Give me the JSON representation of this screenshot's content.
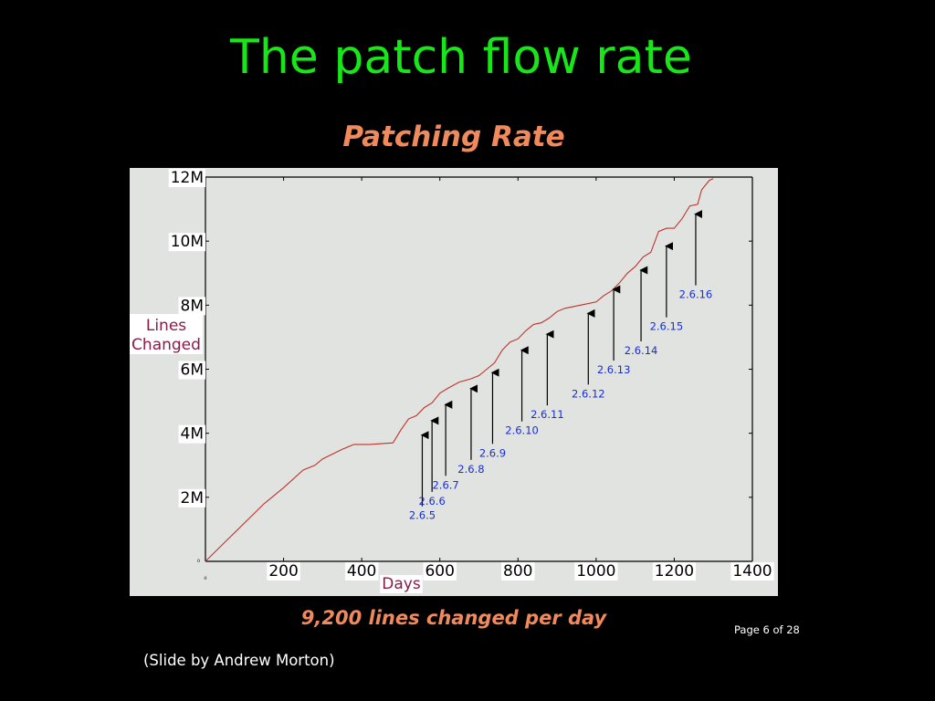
{
  "slide": {
    "title": "The patch flow rate",
    "caption": "9,200 lines changed per day",
    "page_indicator": "Page 6 of 28",
    "credit": "(Slide by Andrew Morton)"
  },
  "colors": {
    "background": "#000000",
    "slide_title": "#19e619",
    "chart_title": "#f08a5c",
    "plot_background": "#e0e3df",
    "line": "#c0332e",
    "axis_label": "#8c1a48",
    "release_label": "#1a2fd1"
  },
  "chart_data": {
    "type": "line",
    "title": "Patching Rate",
    "xlabel": "Days",
    "ylabel": "Lines Changed",
    "xlim": [
      0,
      1400
    ],
    "ylim": [
      0,
      12000000
    ],
    "x_ticks": [
      0,
      200,
      400,
      600,
      800,
      1000,
      1200,
      1400
    ],
    "x_tick_labels": [
      "0",
      "200",
      "400",
      "600",
      "800",
      "1000",
      "1200",
      "1400"
    ],
    "y_ticks": [
      0,
      2000000,
      4000000,
      6000000,
      8000000,
      10000000,
      12000000
    ],
    "y_tick_labels": [
      "0",
      "2M",
      "4M",
      "6M",
      "8M",
      "10M",
      "12M"
    ],
    "grid": false,
    "series": [
      {
        "x": [
          0,
          50,
          100,
          150,
          200,
          250,
          280,
          300,
          350,
          380,
          420,
          480,
          500,
          520,
          540,
          560,
          580,
          600,
          620,
          650,
          680,
          700,
          720,
          740,
          760,
          780,
          800,
          820,
          840,
          860,
          880,
          900,
          920,
          940,
          960,
          980,
          1000,
          1020,
          1040,
          1060,
          1080,
          1100,
          1120,
          1140,
          1160,
          1180,
          1200,
          1220,
          1240,
          1260,
          1270,
          1290,
          1300
        ],
        "y": [
          0,
          600000,
          1200000,
          1800000,
          2300000,
          2850000,
          3000000,
          3200000,
          3500000,
          3650000,
          3650000,
          3700000,
          4100000,
          4450000,
          4550000,
          4800000,
          4950000,
          5250000,
          5400000,
          5600000,
          5700000,
          5800000,
          6000000,
          6200000,
          6600000,
          6850000,
          6950000,
          7200000,
          7400000,
          7450000,
          7600000,
          7800000,
          7900000,
          7950000,
          8000000,
          8050000,
          8100000,
          8300000,
          8450000,
          8700000,
          9000000,
          9200000,
          9500000,
          9650000,
          10300000,
          10400000,
          10400000,
          10700000,
          11100000,
          11150000,
          11600000,
          11900000,
          11950000
        ]
      }
    ],
    "annotations": [
      {
        "label": "2.6.5",
        "x": 555,
        "y": 4000000
      },
      {
        "label": "2.6.6",
        "x": 580,
        "y": 4450000
      },
      {
        "label": "2.6.7",
        "x": 615,
        "y": 4950000
      },
      {
        "label": "2.6.8",
        "x": 680,
        "y": 5450000
      },
      {
        "label": "2.6.9",
        "x": 735,
        "y": 5950000
      },
      {
        "label": "2.6.10",
        "x": 810,
        "y": 6650000
      },
      {
        "label": "2.6.11",
        "x": 875,
        "y": 7150000
      },
      {
        "label": "2.6.12",
        "x": 980,
        "y": 7800000
      },
      {
        "label": "2.6.13",
        "x": 1045,
        "y": 8550000
      },
      {
        "label": "2.6.14",
        "x": 1115,
        "y": 9150000
      },
      {
        "label": "2.6.15",
        "x": 1180,
        "y": 9900000
      },
      {
        "label": "2.6.16",
        "x": 1255,
        "y": 10900000
      }
    ]
  }
}
